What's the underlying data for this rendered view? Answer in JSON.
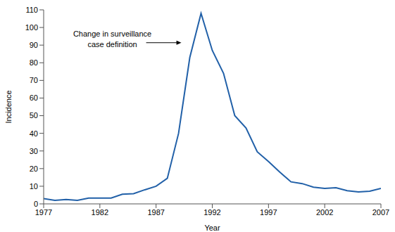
{
  "chart_data": {
    "type": "line",
    "x_label": "Year",
    "y_label": "Incidence",
    "x": [
      1977,
      1978,
      1979,
      1980,
      1981,
      1982,
      1983,
      1984,
      1985,
      1986,
      1987,
      1988,
      1989,
      1990,
      1991,
      1992,
      1993,
      1994,
      1995,
      1996,
      1997,
      1998,
      1999,
      2000,
      2001,
      2002,
      2003,
      2004,
      2005,
      2006,
      2007
    ],
    "values": [
      3,
      2,
      2.5,
      2,
      3.3,
      3.3,
      3.3,
      5.5,
      5.8,
      8,
      10,
      14.5,
      40,
      83,
      108,
      87,
      74,
      50,
      43,
      29.5,
      24,
      18,
      12.5,
      11.5,
      9.5,
      8.8,
      9.2,
      7.5,
      6.8,
      7.2,
      8.8
    ],
    "color": "#2160a8",
    "xlim": [
      1977,
      2007
    ],
    "xticks": [
      1977,
      1982,
      1987,
      1992,
      1997,
      2002,
      2007
    ],
    "ylim": [
      0,
      110
    ],
    "yticks": [
      0,
      10,
      20,
      30,
      40,
      50,
      60,
      70,
      80,
      90,
      100,
      110
    ],
    "grid": false,
    "annotations": [
      {
        "text": "Change in surveillance case definition",
        "x": 1990
      }
    ]
  }
}
